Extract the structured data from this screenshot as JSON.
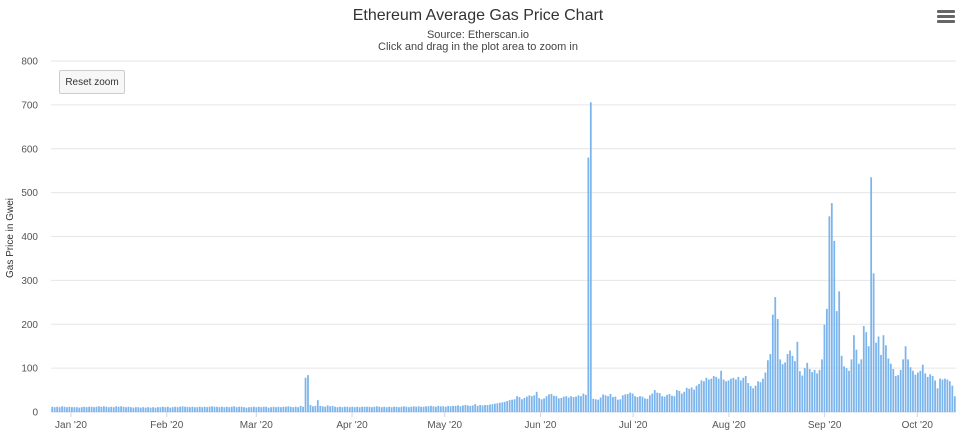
{
  "header": {
    "title": "Ethereum Average Gas Price Chart",
    "source": "Source: Etherscan.io",
    "hint": "Click and drag in the plot area to zoom in"
  },
  "controls": {
    "reset_zoom_label": "Reset zoom",
    "menu_icon": "hamburger-menu-icon"
  },
  "chart_data": {
    "type": "bar",
    "title": "Ethereum Average Gas Price Chart",
    "subtitle": "Source: Etherscan.io",
    "xlabel": "",
    "ylabel": "Gas Price in Gwei",
    "ylim": [
      0,
      800
    ],
    "yticks": [
      "0",
      "100",
      "200",
      "300",
      "400",
      "500",
      "600",
      "700",
      "800"
    ],
    "x_start": "2020-01-01",
    "x_end": "2020-10-20",
    "x_ticks": [
      {
        "label": "Jan '20",
        "date": "2020-01-01"
      },
      {
        "label": "Feb '20",
        "date": "2020-02-01"
      },
      {
        "label": "Mar '20",
        "date": "2020-03-01"
      },
      {
        "label": "Apr '20",
        "date": "2020-04-01"
      },
      {
        "label": "May '20",
        "date": "2020-05-01"
      },
      {
        "label": "Jun '20",
        "date": "2020-06-01"
      },
      {
        "label": "Jul '20",
        "date": "2020-07-01"
      },
      {
        "label": "Aug '20",
        "date": "2020-08-01"
      },
      {
        "label": "Sep '20",
        "date": "2020-09-01"
      },
      {
        "label": "Oct '20",
        "date": "2020-10-01"
      }
    ],
    "grid": true,
    "legend": "none",
    "color": "#7cb5ec",
    "values": [
      12,
      11,
      12,
      11,
      13,
      12,
      11,
      12,
      11,
      11,
      11,
      10,
      11,
      12,
      11,
      12,
      12,
      11,
      12,
      13,
      12,
      13,
      12,
      11,
      12,
      11,
      13,
      12,
      13,
      12,
      11,
      12,
      11,
      10,
      11,
      11,
      10,
      11,
      10,
      11,
      10,
      11,
      10,
      11,
      11,
      12,
      11,
      12,
      10,
      11,
      12,
      11,
      12,
      13,
      12,
      12,
      11,
      12,
      11,
      11,
      12,
      11,
      12,
      11,
      12,
      13,
      12,
      12,
      11,
      12,
      11,
      12,
      11,
      12,
      13,
      11,
      12,
      12,
      11,
      10,
      11,
      11,
      12,
      11,
      12,
      11,
      12,
      12,
      10,
      11,
      12,
      11,
      12,
      11,
      12,
      12,
      13,
      12,
      11,
      12,
      11,
      14,
      12,
      78,
      84,
      16,
      13,
      14,
      27,
      14,
      13,
      12,
      15,
      13,
      14,
      12,
      11,
      12,
      11,
      12,
      12,
      11,
      12,
      11,
      12,
      11,
      12,
      12,
      12,
      12,
      11,
      12,
      13,
      12,
      11,
      12,
      11,
      12,
      11,
      12,
      12,
      11,
      12,
      13,
      12,
      11,
      12,
      13,
      12,
      13,
      12,
      12,
      13,
      13,
      14,
      13,
      12,
      14,
      13,
      13,
      12,
      14,
      13,
      14,
      14,
      15,
      13,
      15,
      16,
      15,
      14,
      15,
      18,
      14,
      16,
      15,
      16,
      16,
      17,
      18,
      19,
      20,
      21,
      22,
      23,
      25,
      27,
      28,
      29,
      36,
      34,
      29,
      32,
      35,
      38,
      36,
      38,
      46,
      32,
      29,
      31,
      36,
      40,
      41,
      37,
      36,
      31,
      32,
      35,
      36,
      33,
      36,
      34,
      35,
      38,
      36,
      42,
      39,
      580,
      706,
      30,
      29,
      28,
      33,
      40,
      38,
      36,
      41,
      34,
      35,
      28,
      29,
      38,
      40,
      41,
      44,
      42,
      36,
      34,
      36,
      35,
      31,
      30,
      38,
      42,
      50,
      44,
      43,
      36,
      35,
      39,
      41,
      37,
      36,
      50,
      48,
      42,
      46,
      55,
      53,
      56,
      51,
      60,
      64,
      72,
      70,
      78,
      74,
      76,
      82,
      80,
      76,
      94,
      74,
      70,
      72,
      76,
      78,
      74,
      80,
      72,
      78,
      82,
      66,
      59,
      54,
      60,
      70,
      68,
      76,
      90,
      118,
      132,
      222,
      262,
      212,
      120,
      109,
      113,
      132,
      140,
      128,
      116,
      160,
      93,
      83,
      100,
      112,
      98,
      91,
      96,
      88,
      96,
      120,
      199,
      235,
      446,
      476,
      390,
      230,
      275,
      128,
      104,
      100,
      94,
      120,
      175,
      142,
      110,
      120,
      196,
      182,
      150,
      535,
      316,
      158,
      172,
      130,
      175,
      152,
      122,
      110,
      98,
      82,
      84,
      96,
      120,
      150,
      120,
      102,
      94,
      85,
      90,
      94,
      108,
      88,
      80,
      86,
      82,
      72,
      54,
      76,
      74,
      76,
      74,
      70,
      60,
      36
    ]
  }
}
